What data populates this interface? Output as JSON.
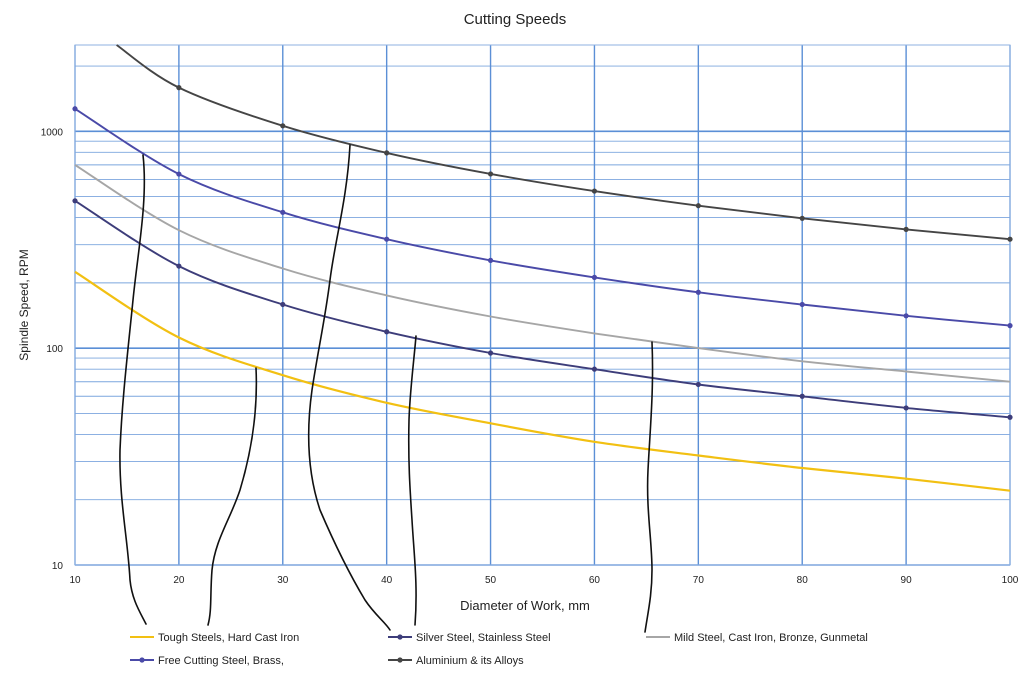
{
  "chart_data": {
    "type": "line",
    "title": "Cutting Speeds",
    "xlabel": "Diameter of Work, mm",
    "ylabel": "Spindle Speed, RPM",
    "xscale": "linear",
    "yscale": "log",
    "xlim": [
      10,
      100
    ],
    "ylim": [
      10,
      2500
    ],
    "x_ticks": [
      10,
      20,
      30,
      40,
      50,
      60,
      70,
      80,
      90,
      100
    ],
    "y_ticks": [
      10,
      100,
      1000
    ],
    "grid": true,
    "legend_position": "bottom",
    "series": [
      {
        "name": "Tough Steels, Hard Cast Iron",
        "color": "#f2c012",
        "markers": false,
        "x": [
          10,
          20,
          30,
          40,
          50,
          60,
          70,
          80,
          90,
          100
        ],
        "y": [
          225,
          112,
          75,
          56,
          45,
          37,
          32,
          28,
          25,
          22
        ]
      },
      {
        "name": "Silver Steel, Stainless Steel",
        "color": "#3d3d7a",
        "markers": true,
        "x": [
          10,
          20,
          30,
          40,
          50,
          60,
          70,
          80,
          90,
          100
        ],
        "y": [
          478,
          239,
          159,
          119,
          95,
          80,
          68,
          60,
          53,
          48
        ]
      },
      {
        "name": "Mild Steel, Cast Iron, Bronze, Gunmetal",
        "color": "#a6a6a6",
        "markers": false,
        "x": [
          10,
          20,
          30,
          40,
          50,
          60,
          70,
          80,
          90,
          100
        ],
        "y": [
          700,
          350,
          233,
          175,
          140,
          117,
          100,
          87,
          78,
          70
        ]
      },
      {
        "name": "Free Cutting Steel, Brass,",
        "color": "#4a4aa8",
        "markers": true,
        "x": [
          10,
          20,
          30,
          40,
          50,
          60,
          70,
          80,
          90,
          100
        ],
        "y": [
          1270,
          635,
          423,
          318,
          254,
          212,
          181,
          159,
          141,
          127
        ]
      },
      {
        "name": "Aluminium & its Alloys",
        "color": "#454545",
        "markers": true,
        "x": [
          14,
          20,
          30,
          40,
          50,
          60,
          70,
          80,
          90,
          100
        ],
        "y": [
          2500,
          1590,
          1060,
          795,
          636,
          530,
          454,
          397,
          353,
          318
        ]
      }
    ]
  }
}
